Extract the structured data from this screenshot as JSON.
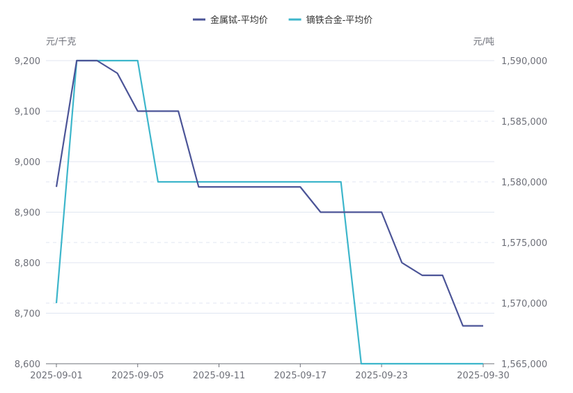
{
  "chart_data": {
    "type": "line",
    "legend_position": "top-center",
    "left_axis": {
      "unit": "元/千克",
      "range": [
        8600,
        9200
      ],
      "ticks": [
        "8,600",
        "8,700",
        "8,800",
        "8,900",
        "9,000",
        "9,100",
        "9,200"
      ],
      "tick_values": [
        8600,
        8700,
        8800,
        8900,
        9000,
        9100,
        9200
      ]
    },
    "right_axis": {
      "unit": "元/吨",
      "range": [
        1565000,
        1590000
      ],
      "ticks": [
        "1,565,000",
        "1,570,000",
        "1,575,000",
        "1,580,000",
        "1,585,000",
        "1,590,000"
      ],
      "tick_values": [
        1565000,
        1570000,
        1575000,
        1580000,
        1585000,
        1590000
      ]
    },
    "x": [
      "2025-09-01",
      "2025-09-02",
      "2025-09-03",
      "2025-09-04",
      "2025-09-05",
      "2025-09-08",
      "2025-09-09",
      "2025-09-10",
      "2025-09-11",
      "2025-09-12",
      "2025-09-15",
      "2025-09-16",
      "2025-09-17",
      "2025-09-18",
      "2025-09-19",
      "2025-09-22",
      "2025-09-23",
      "2025-09-24",
      "2025-09-25",
      "2025-09-26",
      "2025-09-29",
      "2025-09-30"
    ],
    "x_tick_labels": [
      {
        "index": 0,
        "label": "2025-09-01"
      },
      {
        "index": 4,
        "label": "2025-09-05"
      },
      {
        "index": 8,
        "label": "2025-09-11"
      },
      {
        "index": 12,
        "label": "2025-09-17"
      },
      {
        "index": 16,
        "label": "2025-09-23"
      },
      {
        "index": 21,
        "label": "2025-09-30"
      }
    ],
    "series": [
      {
        "name": "金属铽-平均价",
        "axis": "left",
        "color": "#4b5497",
        "values": [
          8950,
          9200,
          9200,
          9175,
          9100,
          9100,
          9100,
          8950,
          8950,
          8950,
          8950,
          8950,
          8950,
          8900,
          8900,
          8900,
          8900,
          8800,
          8775,
          8775,
          8675,
          8675
        ]
      },
      {
        "name": "镝铁合金-平均价",
        "axis": "right",
        "color": "#3db6cb",
        "values": [
          1570000,
          1590000,
          1590000,
          1590000,
          1590000,
          1580000,
          1580000,
          1580000,
          1580000,
          1580000,
          1580000,
          1580000,
          1580000,
          1580000,
          1580000,
          1565000,
          1565000,
          1565000,
          1565000,
          1565000,
          1565000,
          1565000
        ]
      }
    ]
  }
}
